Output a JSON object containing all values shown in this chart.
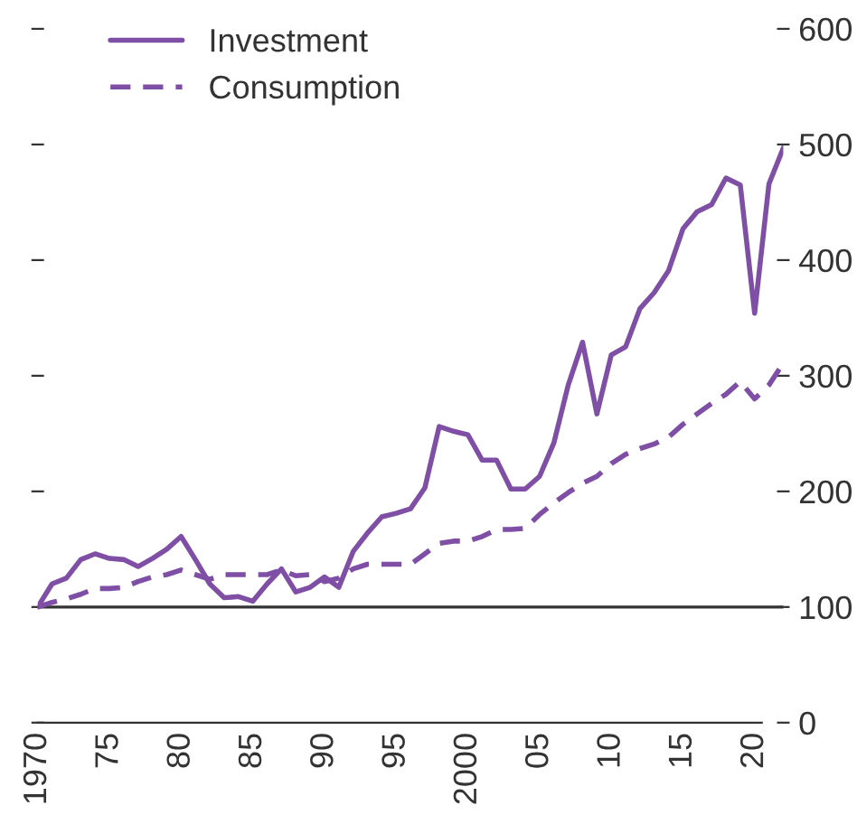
{
  "chart_data": {
    "type": "line",
    "x": [
      1970,
      1971,
      1972,
      1973,
      1974,
      1975,
      1976,
      1977,
      1978,
      1979,
      1980,
      1981,
      1982,
      1983,
      1984,
      1985,
      1986,
      1987,
      1988,
      1989,
      1990,
      1991,
      1992,
      1993,
      1994,
      1995,
      1996,
      1997,
      1998,
      1999,
      2000,
      2001,
      2002,
      2003,
      2004,
      2005,
      2006,
      2007,
      2008,
      2009,
      2010,
      2011,
      2012,
      2013,
      2014,
      2015,
      2016,
      2017,
      2018,
      2019,
      2020,
      2021,
      2022
    ],
    "series": [
      {
        "name": "Investment",
        "color": "#7f4fa6",
        "line_style": "solid",
        "values": [
          100,
          120,
          125,
          141,
          146,
          142,
          141,
          135,
          142,
          150,
          161,
          141,
          120,
          108,
          109,
          105,
          120,
          133,
          113,
          117,
          126,
          117,
          148,
          164,
          178,
          181,
          185,
          203,
          256,
          252,
          249,
          227,
          227,
          202,
          202,
          213,
          242,
          292,
          329,
          267,
          318,
          325,
          358,
          372,
          391,
          427,
          442,
          448,
          471,
          465,
          354,
          466,
          497
        ]
      },
      {
        "name": "Consumption",
        "color": "#7f4fa6",
        "line_style": "dashed",
        "values": [
          100,
          104,
          107,
          111,
          116,
          116,
          117,
          122,
          126,
          128,
          132,
          128,
          124,
          128,
          128,
          128,
          128,
          132,
          127,
          128,
          122,
          125,
          133,
          137,
          137,
          137,
          137,
          146,
          155,
          157,
          157,
          161,
          167,
          167,
          168,
          180,
          190,
          199,
          207,
          213,
          224,
          232,
          237,
          241,
          247,
          258,
          267,
          276,
          284,
          295,
          280,
          292,
          311
        ]
      }
    ],
    "xlim": [
      1970,
      2022
    ],
    "xticks": [
      {
        "value": 1970,
        "label": "1970"
      },
      {
        "value": 1975,
        "label": "75"
      },
      {
        "value": 1980,
        "label": "80"
      },
      {
        "value": 1985,
        "label": "85"
      },
      {
        "value": 1990,
        "label": "90"
      },
      {
        "value": 1995,
        "label": "95"
      },
      {
        "value": 2000,
        "label": "2000"
      },
      {
        "value": 2005,
        "label": "05"
      },
      {
        "value": 2010,
        "label": "10"
      },
      {
        "value": 2015,
        "label": "15"
      },
      {
        "value": 2020,
        "label": "20"
      }
    ],
    "ylim": [
      0,
      600
    ],
    "yticks": [
      0,
      100,
      200,
      300,
      400,
      500,
      600
    ],
    "ref_lines": [
      {
        "axis": "y",
        "value": 100,
        "color": "#333333"
      }
    ],
    "legend": "top left",
    "grid": false,
    "marker": "none"
  }
}
